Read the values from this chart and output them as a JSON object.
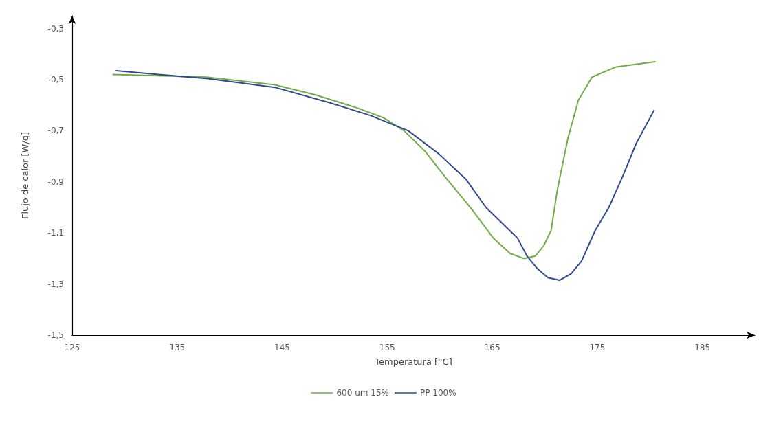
{
  "chart_data": {
    "type": "line",
    "xlabel": "Temperatura [°C]",
    "ylabel": "Flujo de calor [W/g]",
    "xlim": [
      125,
      190
    ],
    "xticks": [
      125,
      135,
      145,
      155,
      165,
      175,
      185
    ],
    "ylim": [
      -1.5,
      -0.25
    ],
    "yticks": [
      {
        "value": -1.5,
        "label": "-1,5"
      },
      {
        "value": -1.3,
        "label": "-1,3"
      },
      {
        "value": -1.1,
        "label": "-1,1"
      },
      {
        "value": -0.9,
        "label": "-0,9"
      },
      {
        "value": -0.7,
        "label": "-0,7"
      },
      {
        "value": -0.5,
        "label": "-0,5"
      },
      {
        "value": -0.3,
        "label": "-0,3"
      }
    ],
    "grid": false,
    "legend": "bottom",
    "marker": "none",
    "line_style": "solid",
    "series": [
      {
        "name": "600 um 15%",
        "color": "#70ad47",
        "x": [
          128.9,
          137.8,
          144.3,
          148.2,
          152.1,
          154.7,
          156.6,
          158.6,
          160.5,
          163.1,
          165.1,
          166.7,
          168.0,
          169.1,
          169.9,
          170.6,
          171.2,
          172.2,
          173.2,
          174.5,
          176.8,
          180.5
        ],
        "values": [
          -0.48,
          -0.49,
          -0.52,
          -0.56,
          -0.61,
          -0.65,
          -0.7,
          -0.78,
          -0.88,
          -1.01,
          -1.12,
          -1.18,
          -1.2,
          -1.19,
          -1.15,
          -1.09,
          -0.93,
          -0.73,
          -0.58,
          -0.49,
          -0.45,
          -0.43
        ]
      },
      {
        "name": "PP 100%",
        "color": "#2f4a8f",
        "x": [
          129.2,
          133.2,
          137.8,
          144.3,
          149.5,
          153.4,
          157.0,
          159.9,
          162.5,
          164.4,
          166.4,
          167.4,
          168.3,
          169.3,
          170.3,
          171.4,
          172.5,
          173.5,
          174.8,
          176.1,
          177.4,
          178.7,
          180.4
        ],
        "values": [
          -0.465,
          -0.48,
          -0.495,
          -0.53,
          -0.59,
          -0.64,
          -0.7,
          -0.79,
          -0.89,
          -1.0,
          -1.08,
          -1.12,
          -1.19,
          -1.24,
          -1.275,
          -1.285,
          -1.26,
          -1.21,
          -1.09,
          -1.0,
          -0.88,
          -0.75,
          -0.62
        ]
      }
    ]
  }
}
